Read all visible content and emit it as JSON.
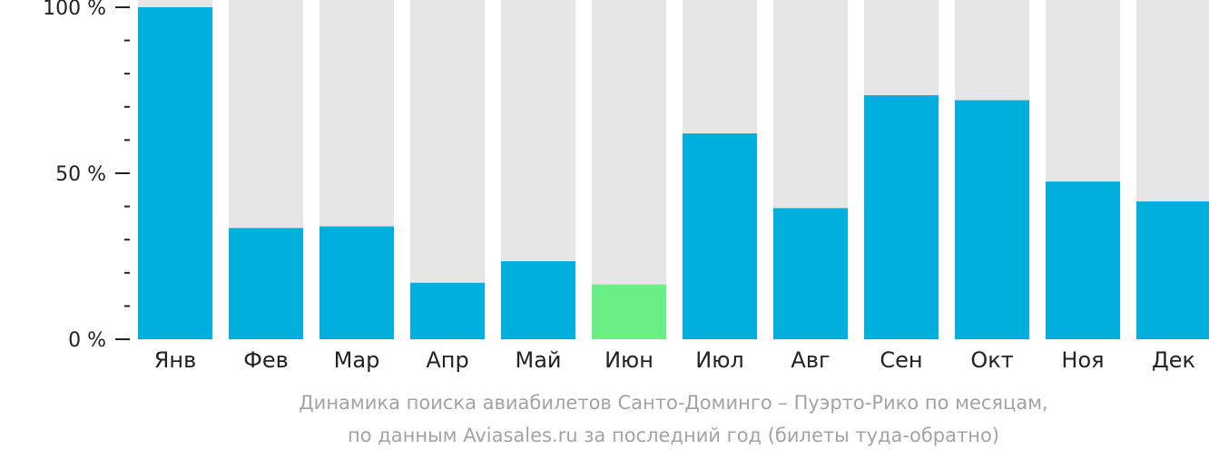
{
  "caption": {
    "line1": "Динамика поиска авиабилетов Санто-Доминго – Пуэрто-Рико по месяцам,",
    "line2": "по данным Aviasales.ru за последний год (билеты туда-обратно)"
  },
  "colors": {
    "bar": "#00afdb",
    "highlight": "#6aee86",
    "track": "#e6e6e6",
    "axis": "#222222",
    "tick_text": "#222222",
    "caption": "#a3a3a3"
  },
  "chart_data": {
    "type": "bar",
    "title": "",
    "xlabel": "",
    "ylabel": "",
    "ylim": [
      0,
      100
    ],
    "y_ticks": [
      {
        "value": 0,
        "label": "0 %"
      },
      {
        "value": 50,
        "label": "50 %"
      },
      {
        "value": 100,
        "label": "100 %"
      }
    ],
    "y_minor_tick_step": 10,
    "categories": [
      "Янв",
      "Фев",
      "Мар",
      "Апр",
      "Май",
      "Июн",
      "Июл",
      "Авг",
      "Сен",
      "Окт",
      "Ноя",
      "Дек"
    ],
    "values": [
      100,
      33.5,
      34,
      17,
      23.5,
      16.5,
      62,
      39.5,
      73.5,
      72,
      47.5,
      41.5
    ],
    "highlighted_category": "Июн",
    "background_track": true,
    "grid": false,
    "legend": "none"
  }
}
